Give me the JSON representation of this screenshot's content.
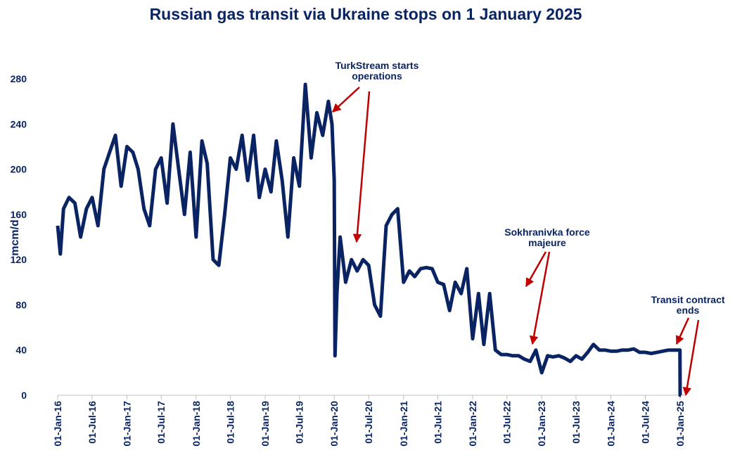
{
  "chart_data": {
    "type": "line",
    "title": "Russian gas transit via Ukraine stops on 1 January 2025",
    "ylabel": "mcm/d",
    "x": [
      "2016-01-01",
      "2016-01-15",
      "2016-02-01",
      "2016-03-01",
      "2016-04-01",
      "2016-05-01",
      "2016-06-01",
      "2016-07-01",
      "2016-08-01",
      "2016-09-01",
      "2016-10-01",
      "2016-11-01",
      "2016-12-01",
      "2017-01-01",
      "2017-02-01",
      "2017-03-01",
      "2017-04-01",
      "2017-05-01",
      "2017-06-01",
      "2017-07-01",
      "2017-08-01",
      "2017-09-01",
      "2017-10-01",
      "2017-11-01",
      "2017-12-01",
      "2018-01-01",
      "2018-02-01",
      "2018-03-01",
      "2018-04-01",
      "2018-05-01",
      "2018-06-01",
      "2018-07-01",
      "2018-08-01",
      "2018-09-01",
      "2018-10-01",
      "2018-11-01",
      "2018-12-01",
      "2019-01-01",
      "2019-02-01",
      "2019-03-01",
      "2019-04-01",
      "2019-05-01",
      "2019-06-01",
      "2019-07-01",
      "2019-08-01",
      "2019-09-01",
      "2019-10-01",
      "2019-11-01",
      "2019-12-01",
      "2019-12-20",
      "2020-01-01",
      "2020-01-05",
      "2020-01-15",
      "2020-02-01",
      "2020-03-01",
      "2020-04-01",
      "2020-05-01",
      "2020-06-01",
      "2020-07-01",
      "2020-08-01",
      "2020-09-01",
      "2020-10-01",
      "2020-11-01",
      "2020-12-01",
      "2021-01-01",
      "2021-02-01",
      "2021-03-01",
      "2021-04-01",
      "2021-05-01",
      "2021-06-01",
      "2021-07-01",
      "2021-08-01",
      "2021-09-01",
      "2021-10-01",
      "2021-11-01",
      "2021-12-01",
      "2022-01-01",
      "2022-02-01",
      "2022-03-01",
      "2022-04-01",
      "2022-05-01",
      "2022-06-01",
      "2022-07-01",
      "2022-08-01",
      "2022-09-01",
      "2022-10-01",
      "2022-11-01",
      "2022-12-01",
      "2023-01-01",
      "2023-02-01",
      "2023-03-01",
      "2023-04-01",
      "2023-05-01",
      "2023-06-01",
      "2023-07-01",
      "2023-08-01",
      "2023-09-01",
      "2023-10-01",
      "2023-11-01",
      "2023-12-01",
      "2024-01-01",
      "2024-02-01",
      "2024-03-01",
      "2024-04-01",
      "2024-05-01",
      "2024-06-01",
      "2024-07-01",
      "2024-08-01",
      "2024-09-01",
      "2024-10-01",
      "2024-11-01",
      "2024-12-25",
      "2024-12-31",
      "2025-01-01",
      "2025-01-05"
    ],
    "series": [
      {
        "name": "mcm/d",
        "color": "#0a2463",
        "values": [
          150,
          125,
          165,
          175,
          170,
          140,
          165,
          175,
          150,
          200,
          215,
          230,
          185,
          220,
          215,
          200,
          165,
          150,
          200,
          210,
          170,
          240,
          200,
          160,
          215,
          140,
          225,
          205,
          120,
          115,
          160,
          210,
          200,
          230,
          190,
          230,
          175,
          200,
          180,
          225,
          190,
          140,
          210,
          185,
          275,
          210,
          250,
          230,
          260,
          240,
          190,
          35,
          90,
          140,
          100,
          120,
          110,
          120,
          115,
          80,
          70,
          150,
          160,
          165,
          100,
          110,
          105,
          112,
          113,
          112,
          100,
          98,
          75,
          100,
          90,
          112,
          50,
          90,
          45,
          90,
          40,
          36,
          36,
          35,
          35,
          32,
          30,
          40,
          20,
          35,
          34,
          35,
          33,
          30,
          35,
          32,
          38,
          45,
          40,
          40,
          39,
          39,
          40,
          40,
          41,
          38,
          38,
          37,
          38,
          39,
          40,
          40,
          40,
          0,
          0
        ]
      }
    ],
    "xlim": [
      "2016-01-01",
      "2025-01-01"
    ],
    "xticks": [
      {
        "value": "2016-01-01",
        "label": "01-Jan-16"
      },
      {
        "value": "2016-07-01",
        "label": "01-Jul-16"
      },
      {
        "value": "2017-01-01",
        "label": "01-Jan-17"
      },
      {
        "value": "2017-07-01",
        "label": "01-Jul-17"
      },
      {
        "value": "2018-01-01",
        "label": "01-Jan-18"
      },
      {
        "value": "2018-07-01",
        "label": "01-Jul-18"
      },
      {
        "value": "2019-01-01",
        "label": "01-Jan-19"
      },
      {
        "value": "2019-07-01",
        "label": "01-Jul-19"
      },
      {
        "value": "2020-01-01",
        "label": "01-Jan-20"
      },
      {
        "value": "2020-07-01",
        "label": "01-Jul-20"
      },
      {
        "value": "2021-01-01",
        "label": "01-Jan-21"
      },
      {
        "value": "2021-07-01",
        "label": "01-Jul-21"
      },
      {
        "value": "2022-01-01",
        "label": "01-Jan-22"
      },
      {
        "value": "2022-07-01",
        "label": "01-Jul-22"
      },
      {
        "value": "2023-01-01",
        "label": "01-Jan-23"
      },
      {
        "value": "2023-07-01",
        "label": "01-Jul-23"
      },
      {
        "value": "2024-01-01",
        "label": "01-Jan-24"
      },
      {
        "value": "2024-07-01",
        "label": "01-Jul-24"
      },
      {
        "value": "2025-01-01",
        "label": "01-Jan-25"
      }
    ],
    "ylim": [
      0,
      280
    ],
    "yticks": [
      0,
      40,
      80,
      120,
      160,
      200,
      240,
      280
    ],
    "annotations": [
      {
        "lines": [
          "TurkStream starts",
          "operations"
        ]
      },
      {
        "lines": [
          "Sokhranivka force",
          "majeure"
        ]
      },
      {
        "lines": [
          "Transit contract",
          "ends"
        ]
      }
    ]
  }
}
